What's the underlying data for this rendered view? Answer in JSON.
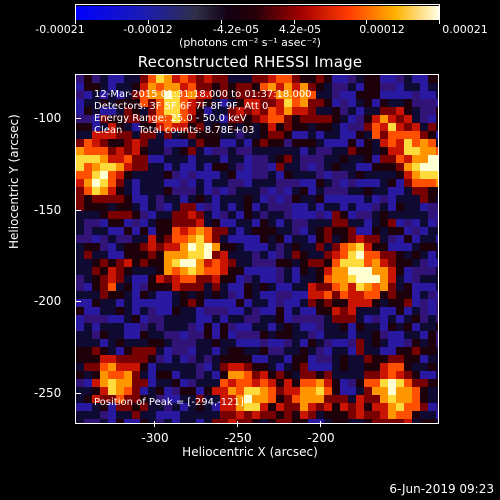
{
  "colorbar": {
    "tick_labels": [
      "-0.00021",
      "-0.00012",
      "-4.2e-05",
      "4.2e-05",
      "0.00012",
      "0.00021"
    ],
    "unit": "(photons cm⁻² s⁻¹ asec⁻²)"
  },
  "title": "Reconstructed RHESSI Image",
  "info": {
    "time": "12-Mar-2015 01:31:18.000 to 01:37:18.000",
    "detectors": "Detectors: 3F 5F 6F 7F 8F 9F, Att 0",
    "energy": "Energy Range: 25.0 - 50.0 keV",
    "algorithm": "Clean     Total counts: 8.78E+03"
  },
  "peak": "Position of Peak = [-294,-121]",
  "axes": {
    "xlabel": "Heliocentric X (arcsec)",
    "ylabel": "Heliocentric Y (arcsec)",
    "xticks": [
      "-300",
      "-250",
      "-200"
    ],
    "yticks": [
      "-100",
      "-150",
      "-200",
      "-250"
    ]
  },
  "footer": "6-Jun-2019 09:23",
  "colors": {
    "background": "#000000",
    "text": "#ffffff"
  }
}
